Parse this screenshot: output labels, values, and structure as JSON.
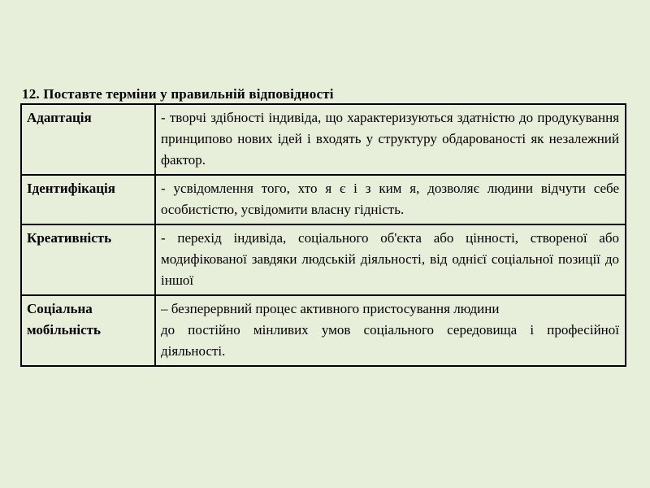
{
  "page": {
    "title": "12. Поставте терміни у правильній відповідності"
  },
  "colors": {
    "background": "#e7eeda",
    "border": "#000000",
    "text": "#000000"
  },
  "table": {
    "columns": [
      "term",
      "definition"
    ],
    "rows": [
      {
        "term": "Адаптація",
        "definition": "- творчі здібності індивіда, що характеризуються здатністю до продукування принципово нових ідей і входять у структуру обдарованості як незалежний фактор."
      },
      {
        "term": "Ідентифікація",
        "definition": "- усвідомлення того, хто я є і з ким я, дозволяє людини відчути себе особистістю, усвідомити власну гідність."
      },
      {
        "term": "Креативність",
        "definition": "- перехід індивіда, соціального об'єкта або цінності, створеної або модифікованої завдяки людській діяльності, від однієї соціальної позиції до іншої"
      },
      {
        "term": "Соціальна мобільність",
        "definition": "– безперервний процес активного пристосування людини\nдо постійно мінливих умов соціального середовища і професійної діяльності."
      }
    ]
  }
}
